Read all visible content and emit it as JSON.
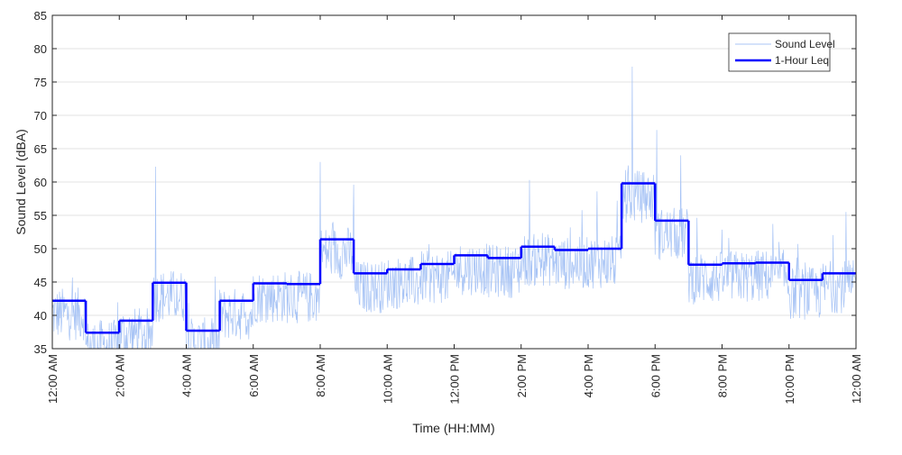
{
  "chart_data": {
    "type": "line",
    "title": "",
    "xlabel": "Time (HH:MM)",
    "ylabel": "Sound Level (dBA)",
    "xlim_hours": [
      0,
      24
    ],
    "ylim": [
      35,
      85
    ],
    "yticks": [
      35,
      40,
      45,
      50,
      55,
      60,
      65,
      70,
      75,
      80,
      85
    ],
    "xtick_hours": [
      0,
      2,
      4,
      6,
      8,
      10,
      12,
      14,
      16,
      18,
      20,
      22,
      24
    ],
    "xtick_labels": [
      "12:00 AM",
      "2:00 AM",
      "4:00 AM",
      "6:00 AM",
      "8:00 AM",
      "10:00 AM",
      "12:00 PM",
      "2:00 PM",
      "4:00 PM",
      "6:00 PM",
      "8:00 PM",
      "10:00 PM",
      "12:00 AM"
    ],
    "grid": "horizontal",
    "legend_position": "top-right",
    "series": [
      {
        "name": "Sound Level",
        "color": "#a8c4f5",
        "style": "thin noisy line",
        "spikes": [
          {
            "hour": 3.08,
            "value": 62.3
          },
          {
            "hour": 8.0,
            "value": 63.0
          },
          {
            "hour": 9.0,
            "value": 59.6
          },
          {
            "hour": 14.25,
            "value": 60.3
          },
          {
            "hour": 16.27,
            "value": 58.6
          },
          {
            "hour": 17.32,
            "value": 77.3
          },
          {
            "hour": 18.05,
            "value": 67.8
          },
          {
            "hour": 18.77,
            "value": 64.0
          },
          {
            "hour": 23.7,
            "value": 55.5
          }
        ]
      },
      {
        "name": "1-Hour Leq",
        "color": "#0000ff",
        "style": "step",
        "hours": [
          0,
          1,
          2,
          3,
          4,
          5,
          6,
          7,
          8,
          9,
          10,
          11,
          12,
          13,
          14,
          15,
          16,
          17,
          18,
          19,
          20,
          21,
          22,
          23
        ],
        "values": [
          42.2,
          37.4,
          39.2,
          44.9,
          37.7,
          42.2,
          44.8,
          44.7,
          51.4,
          46.3,
          46.9,
          47.7,
          49.0,
          48.6,
          50.3,
          49.8,
          50.0,
          59.8,
          54.2,
          47.6,
          47.8,
          47.9,
          45.3,
          46.3
        ]
      }
    ]
  }
}
